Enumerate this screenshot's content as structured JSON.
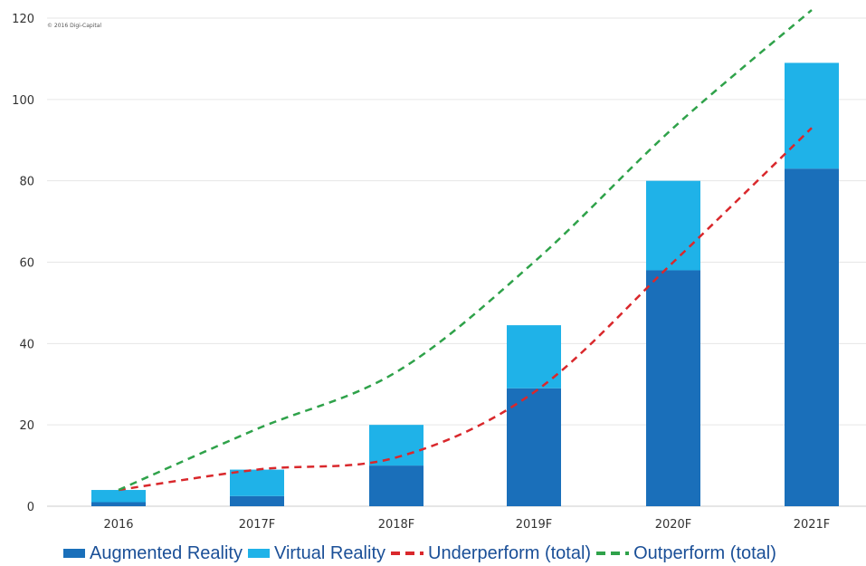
{
  "copyright": "© 2016 Digi-Capital",
  "colors": {
    "ar": "#1a6fba",
    "vr": "#1fb2e8",
    "underperform": "#d9282c",
    "outperform": "#2fa24a",
    "grid": "#e6e6e6"
  },
  "chart_data": {
    "type": "bar",
    "stacked": true,
    "categories": [
      "2016",
      "2017F",
      "2018F",
      "2019F",
      "2020F",
      "2021F"
    ],
    "series": [
      {
        "name": "Augmented Reality",
        "type": "bar",
        "values": [
          1,
          2.5,
          10,
          29,
          58,
          83
        ]
      },
      {
        "name": "Virtual Reality",
        "type": "bar",
        "values": [
          3,
          6.5,
          10,
          15.5,
          22,
          26
        ]
      },
      {
        "name": "Underperform (total)",
        "type": "line",
        "style": "dashed",
        "values": [
          4,
          9,
          12,
          28,
          60,
          93
        ]
      },
      {
        "name": "Outperform (total)",
        "type": "line",
        "style": "dashed",
        "values": [
          4,
          19,
          33,
          60,
          93,
          122
        ]
      }
    ],
    "yticks": [
      "0",
      "20",
      "40",
      "60",
      "80",
      "100",
      "120"
    ],
    "ylim": [
      0,
      120
    ],
    "grid": true,
    "legend": "bottom"
  }
}
